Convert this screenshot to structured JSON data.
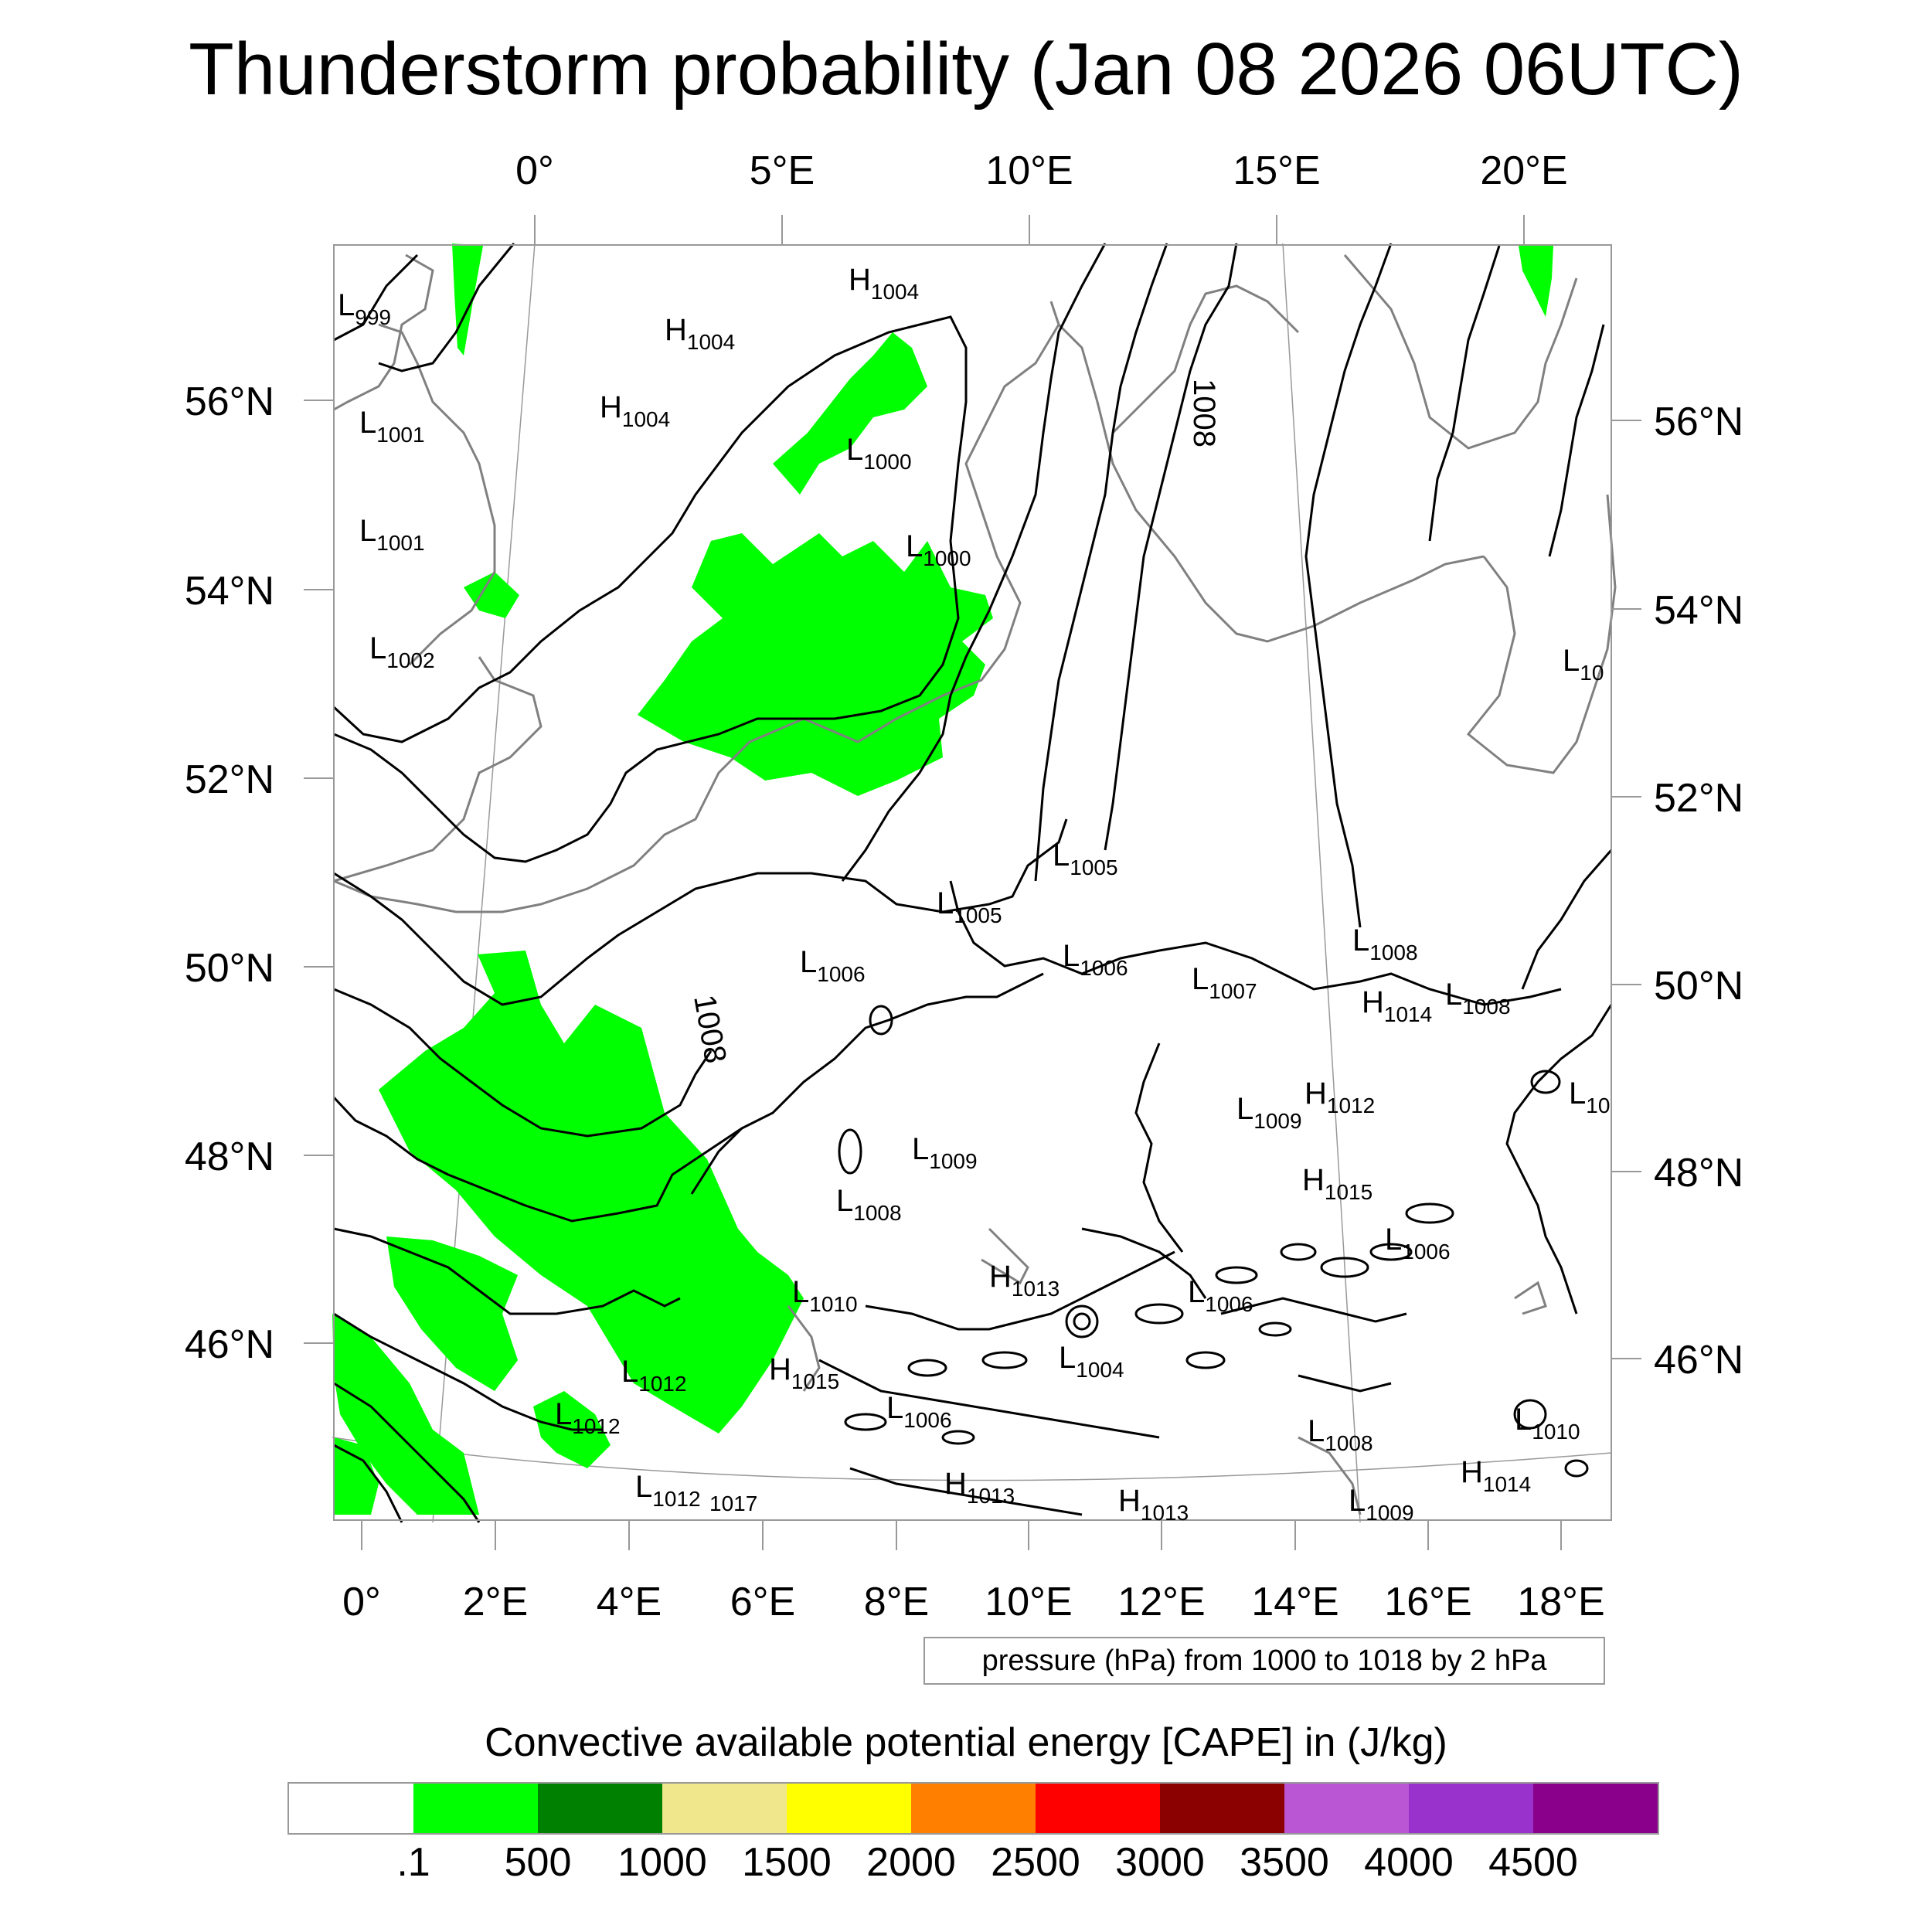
{
  "title": "Thunderstorm probability (Jan 08 2026 06UTC)",
  "top_lon_labels": [
    "0°",
    "5°E",
    "10°E",
    "15°E",
    "20°E"
  ],
  "bottom_lon_labels": [
    "0°",
    "2°E",
    "4°E",
    "6°E",
    "8°E",
    "10°E",
    "12°E",
    "14°E",
    "16°E",
    "18°E"
  ],
  "left_lat_labels": [
    "56°N",
    "54°N",
    "52°N",
    "50°N",
    "48°N",
    "46°N"
  ],
  "right_lat_labels": [
    "56°N",
    "54°N",
    "52°N",
    "50°N",
    "48°N",
    "46°N"
  ],
  "pressure_labels": [
    {
      "letter": "L",
      "value": "999"
    },
    {
      "letter": "H",
      "value": "1004"
    },
    {
      "letter": "H",
      "value": "1004"
    },
    {
      "letter": "H",
      "value": "1004"
    },
    {
      "letter": "L",
      "value": "1001"
    },
    {
      "letter": "L",
      "value": "1000"
    },
    {
      "letter": "L",
      "value": "1001"
    },
    {
      "letter": "L",
      "value": "1000"
    },
    {
      "letter": "L",
      "value": "1002"
    },
    {
      "letter": "L",
      "value": "10"
    },
    {
      "letter": "L",
      "value": "1005"
    },
    {
      "letter": "L",
      "value": "1005"
    },
    {
      "letter": "L",
      "value": "1006"
    },
    {
      "letter": "L",
      "value": "1006"
    },
    {
      "letter": "L",
      "value": "1007"
    },
    {
      "letter": "L",
      "value": "1008"
    },
    {
      "letter": "H",
      "value": "1014"
    },
    {
      "letter": "L",
      "value": "1008"
    },
    {
      "letter": "H",
      "value": "1012"
    },
    {
      "letter": "L",
      "value": "1009"
    },
    {
      "letter": "L",
      "value": "10"
    },
    {
      "letter": "L",
      "value": "1009"
    },
    {
      "letter": "H",
      "value": "1015"
    },
    {
      "letter": "L",
      "value": "1008"
    },
    {
      "letter": "L",
      "value": "1006"
    },
    {
      "letter": "H",
      "value": "1013"
    },
    {
      "letter": "L",
      "value": "1010"
    },
    {
      "letter": "L",
      "value": "1006"
    },
    {
      "letter": "L",
      "value": "1012"
    },
    {
      "letter": "H",
      "value": "1015"
    },
    {
      "letter": "L",
      "value": "1004"
    },
    {
      "letter": "L",
      "value": "1012"
    },
    {
      "letter": "L",
      "value": "1006"
    },
    {
      "letter": "L",
      "value": "1008"
    },
    {
      "letter": "L",
      "value": "1010"
    },
    {
      "letter": "H",
      "value": "1013"
    },
    {
      "letter": "L",
      "value": "1012"
    },
    {
      "letter": "H",
      "value": "1013"
    },
    {
      "letter": "H",
      "value": "1014"
    },
    {
      "letter": "L",
      "value": "1009"
    }
  ],
  "isobar_inline_labels": [
    "1008",
    "1008"
  ],
  "extra_label_1017": "1017",
  "pressure_note": "pressure (hPa) from 1000 to 1018 by 2 hPa",
  "cape_title": "Convective available potential energy [CAPE] in (J/kg)",
  "colorbar": {
    "colors": [
      "#ffffff",
      "#00ff00",
      "#008000",
      "#f0e68c",
      "#ffff00",
      "#ff8000",
      "#ff0000",
      "#8b0000",
      "#ba55d3",
      "#9932cc",
      "#8b008b"
    ],
    "labels": [
      ".1",
      "500",
      "1000",
      "1500",
      "2000",
      "2500",
      "3000",
      "3500",
      "4000",
      "4500"
    ]
  },
  "colors": {
    "cape_fill": "#00ff00",
    "coast": "#808080",
    "isobar": "#000000"
  }
}
